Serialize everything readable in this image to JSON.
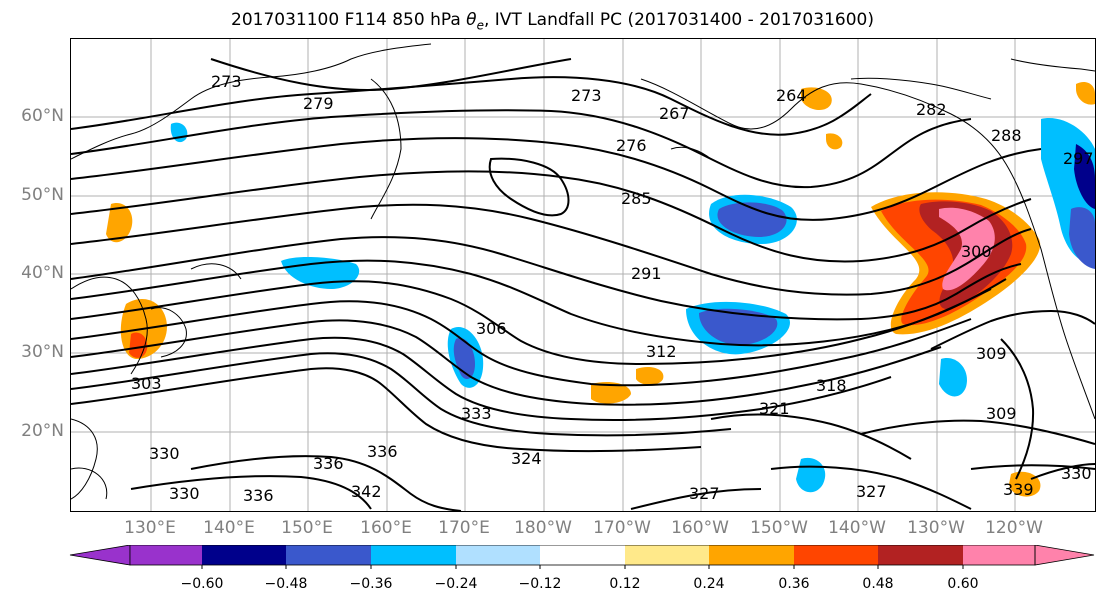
{
  "title_prefix": "2017031100 F114 850 hPa ",
  "title_symbol": "θ",
  "title_subscript": "e",
  "title_suffix": ", IVT Landfall PC (2017031400 - 2017031600)",
  "lat_labels": [
    "60°N",
    "50°N",
    "40°N",
    "30°N",
    "20°N"
  ],
  "lon_labels": [
    "130°E",
    "140°E",
    "150°E",
    "160°E",
    "170°E",
    "180°W",
    "170°W",
    "160°W",
    "150°W",
    "140°W",
    "130°W",
    "120°W"
  ],
  "colorbar": {
    "colors": [
      "#9932cc",
      "#00008b",
      "#3a58cc",
      "#00bfff",
      "#b0e0ff",
      "#ffffff",
      "#ffe98a",
      "#ffa500",
      "#ff4500",
      "#b22222",
      "#ff82ab"
    ],
    "ticks": [
      "−0.60",
      "−0.48",
      "−0.36",
      "−0.24",
      "−0.12",
      "0.12",
      "0.24",
      "0.36",
      "0.48",
      "0.60"
    ],
    "min_extend": "both"
  },
  "contour_labels": [
    "273",
    "279",
    "273",
    "267",
    "264",
    "276",
    "282",
    "288",
    "297",
    "285",
    "291",
    "300",
    "303",
    "306",
    "309",
    "312",
    "318",
    "321",
    "324",
    "327",
    "327",
    "330",
    "330",
    "333",
    "336",
    "336",
    "339",
    "342",
    "330",
    "309",
    "336"
  ],
  "map": {
    "variable": "850 hPa θe contours (K) with IVT landfall PC shading",
    "domain": "North Pacific, 125°E–115°W, 10°N–70°N",
    "grid": true
  }
}
